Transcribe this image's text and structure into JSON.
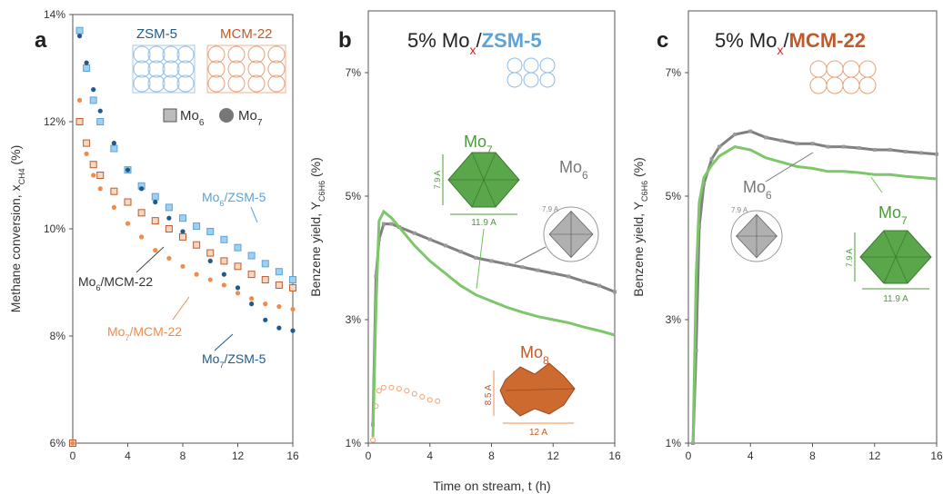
{
  "xlabel_shared": "Time on stream, t (h)",
  "colors": {
    "zsm": "#1f5a8a",
    "zsm_light": "#5ba3d9",
    "mcm": "#c05a2a",
    "mcm_light": "#f08c4a",
    "grey": "#7f7f7f",
    "green": "#6fbf5a",
    "green_dark": "#4c9a3a",
    "orange_open": "#f0a070"
  },
  "chart_data": [
    {
      "type": "scatter",
      "panel_label": "a",
      "ylabel": "Methane conversion, x",
      "ylabel_sub": "CH4",
      "ylabel_unit": " (%)",
      "xlim": [
        0,
        16
      ],
      "ylim": [
        6,
        14
      ],
      "xticks": [
        "0",
        "4",
        "8",
        "12",
        "16"
      ],
      "yticks": [
        "6%",
        "8%",
        "10%",
        "12%",
        "14%"
      ],
      "framework_labels": [
        "ZSM-5",
        "MCM-22"
      ],
      "legend": {
        "mo6": "Mo",
        "mo6_sub": "6",
        "mo7": "Mo",
        "mo7_sub": "7"
      },
      "annotations": {
        "mo6_zsm": "Mo6/ZSM-5",
        "mo6_mcm": "Mo6/MCM-22",
        "mo7_mcm": "Mo7/MCM-22",
        "mo7_zsm": "Mo7/ZSM-5"
      },
      "series": [
        {
          "name": "Mo6/ZSM-5",
          "marker": "square",
          "x": [
            0,
            0.5,
            1,
            1.5,
            2,
            3,
            4,
            5,
            6,
            7,
            8,
            9,
            10,
            11,
            12,
            13,
            14,
            15,
            16
          ],
          "y": [
            6.0,
            13.7,
            13.0,
            12.4,
            12.0,
            11.5,
            11.1,
            10.8,
            10.6,
            10.4,
            10.2,
            10.05,
            9.95,
            9.8,
            9.65,
            9.5,
            9.35,
            9.2,
            9.05
          ]
        },
        {
          "name": "Mo7/ZSM-5",
          "marker": "circle",
          "x": [
            0,
            0.5,
            1,
            1.5,
            2,
            3,
            4,
            5,
            6,
            7,
            8,
            9,
            10,
            11,
            12,
            13,
            14,
            15,
            16
          ],
          "y": [
            6.0,
            13.6,
            13.1,
            12.6,
            12.2,
            11.6,
            11.1,
            10.75,
            10.5,
            10.2,
            9.95,
            9.7,
            9.4,
            9.15,
            8.9,
            8.6,
            8.3,
            8.15,
            8.1
          ]
        },
        {
          "name": "Mo6/MCM-22",
          "marker": "square",
          "x": [
            0,
            0.5,
            1,
            1.5,
            2,
            3,
            4,
            5,
            6,
            7,
            8,
            9,
            10,
            11,
            12,
            13,
            14,
            15,
            16
          ],
          "y": [
            6.0,
            12.0,
            11.6,
            11.2,
            11.0,
            10.7,
            10.5,
            10.3,
            10.15,
            10.0,
            9.85,
            9.7,
            9.55,
            9.4,
            9.3,
            9.15,
            9.05,
            8.95,
            8.9
          ]
        },
        {
          "name": "Mo7/MCM-22",
          "marker": "circle",
          "x": [
            0,
            0.5,
            1,
            1.5,
            2,
            3,
            4,
            5,
            6,
            7,
            8,
            9,
            10,
            11,
            12,
            13,
            14,
            15,
            16
          ],
          "y": [
            6.0,
            12.4,
            11.4,
            11.0,
            10.75,
            10.4,
            10.1,
            9.85,
            9.6,
            9.45,
            9.3,
            9.15,
            9.05,
            8.95,
            8.8,
            8.7,
            8.6,
            8.55,
            8.5
          ]
        }
      ]
    },
    {
      "type": "line",
      "panel_label": "b",
      "title_prefix": "5% Mo",
      "title_sub": "x",
      "title_slash": "/",
      "title_support": "ZSM-5",
      "ylabel": "Benzene yield, Y",
      "ylabel_sub": "C6H6",
      "ylabel_unit": " (%)",
      "xlim": [
        0,
        16
      ],
      "ylim": [
        1,
        8
      ],
      "xticks": [
        "0",
        "4",
        "8",
        "12",
        "16"
      ],
      "yticks": [
        "1%",
        "3%",
        "5%",
        "7%"
      ],
      "clusters": {
        "mo7": "Mo",
        "mo7_sub": "7",
        "mo7_h": "7.9 A",
        "mo7_w": "11.9 A",
        "mo6": "Mo",
        "mo6_sub": "6",
        "mo6_d": "7.9 A",
        "mo8": "Mo",
        "mo8_sub": "8",
        "mo8_h": "8.5 A",
        "mo8_w": "12 A"
      },
      "series": [
        {
          "name": "Mo6",
          "x": [
            0.3,
            0.5,
            0.7,
            1,
            1.5,
            2,
            3,
            4,
            5,
            6,
            7,
            8,
            9,
            10,
            11,
            12,
            13,
            14,
            15,
            16
          ],
          "y": [
            1.3,
            3.7,
            4.3,
            4.55,
            4.55,
            4.5,
            4.4,
            4.3,
            4.2,
            4.1,
            4.0,
            3.95,
            3.9,
            3.85,
            3.8,
            3.75,
            3.7,
            3.62,
            3.55,
            3.45
          ]
        },
        {
          "name": "Mo7",
          "x": [
            0.3,
            0.5,
            0.7,
            1,
            1.5,
            2,
            3,
            4,
            5,
            6,
            7,
            8,
            9,
            10,
            11,
            12,
            13,
            14,
            15,
            16
          ],
          "y": [
            1.1,
            3.2,
            4.6,
            4.75,
            4.65,
            4.5,
            4.2,
            3.95,
            3.75,
            3.55,
            3.4,
            3.3,
            3.2,
            3.12,
            3.05,
            3.0,
            2.95,
            2.88,
            2.82,
            2.75
          ]
        },
        {
          "name": "Mo8",
          "x": [
            0.3,
            0.5,
            0.7,
            1,
            1.5,
            2,
            2.5,
            3,
            3.5,
            4,
            4.5
          ],
          "y": [
            1.05,
            1.6,
            1.85,
            1.9,
            1.9,
            1.88,
            1.85,
            1.8,
            1.75,
            1.7,
            1.68
          ]
        }
      ]
    },
    {
      "type": "line",
      "panel_label": "c",
      "title_prefix": "5% Mo",
      "title_sub": "x",
      "title_slash": "/",
      "title_support": "MCM-22",
      "ylabel": "Benzene yield, Y",
      "ylabel_sub": "C6H6",
      "ylabel_unit": " (%)",
      "xlim": [
        0,
        16
      ],
      "ylim": [
        1,
        8
      ],
      "xticks": [
        "0",
        "4",
        "8",
        "12",
        "16"
      ],
      "yticks": [
        "1%",
        "3%",
        "5%",
        "7%"
      ],
      "clusters": {
        "mo6": "Mo",
        "mo6_sub": "6",
        "mo6_d": "7.9 A",
        "mo7": "Mo",
        "mo7_sub": "7",
        "mo7_h": "7.9 A",
        "mo7_w": "11.9 A"
      },
      "series": [
        {
          "name": "Mo6",
          "x": [
            0.3,
            0.5,
            0.7,
            1,
            1.5,
            2,
            3,
            4,
            5,
            6,
            7,
            8,
            9,
            10,
            11,
            12,
            13,
            14,
            15,
            16
          ],
          "y": [
            1.0,
            2.5,
            4.5,
            5.2,
            5.6,
            5.8,
            6.0,
            6.05,
            5.95,
            5.9,
            5.85,
            5.85,
            5.8,
            5.8,
            5.78,
            5.75,
            5.75,
            5.72,
            5.7,
            5.68
          ]
        },
        {
          "name": "Mo7",
          "x": [
            0.3,
            0.5,
            0.7,
            1,
            1.5,
            2,
            3,
            4,
            5,
            6,
            7,
            8,
            9,
            10,
            11,
            12,
            13,
            14,
            15,
            16
          ],
          "y": [
            1.0,
            3.7,
            4.9,
            5.3,
            5.5,
            5.65,
            5.8,
            5.75,
            5.62,
            5.55,
            5.48,
            5.45,
            5.4,
            5.4,
            5.38,
            5.35,
            5.35,
            5.32,
            5.3,
            5.28
          ]
        }
      ]
    }
  ]
}
